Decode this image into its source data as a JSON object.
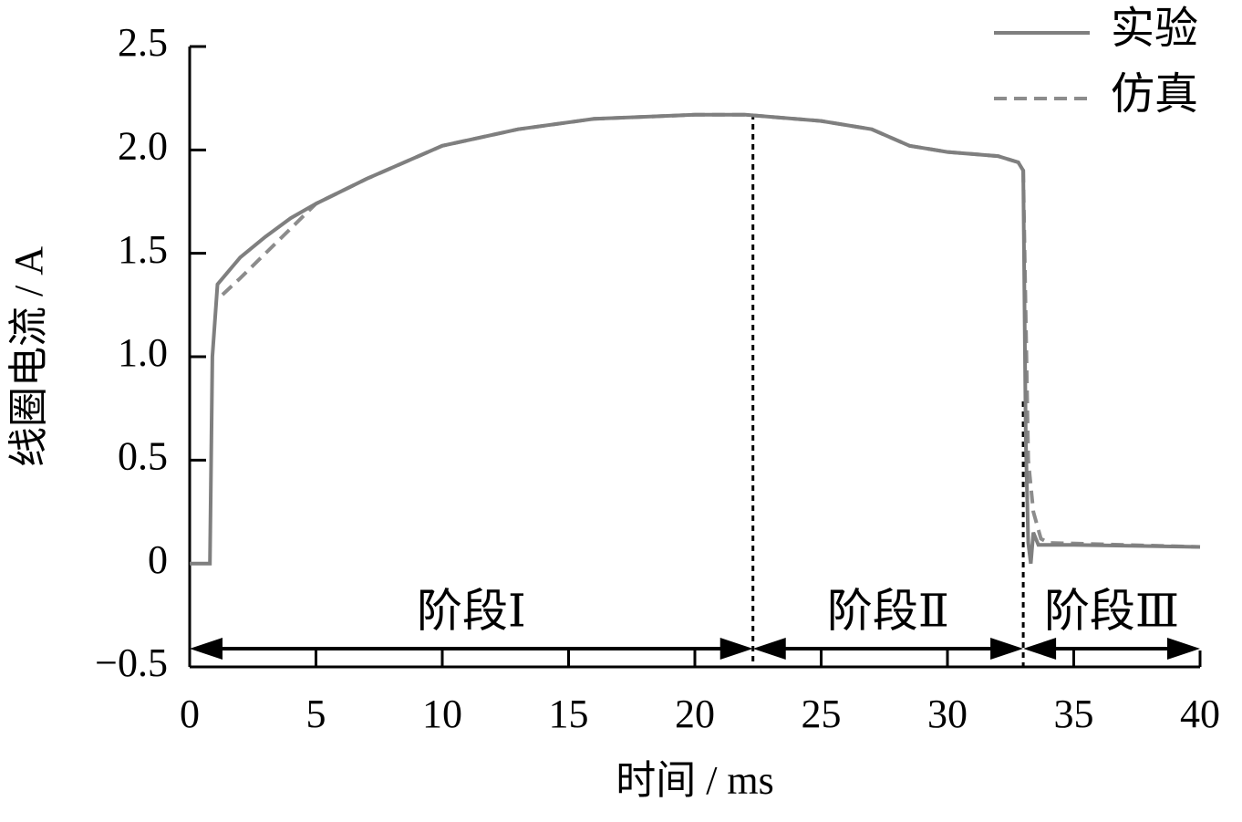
{
  "chart_data": {
    "type": "line",
    "xlabel": "时间 / ms",
    "ylabel": "线圈电流 / A",
    "xlim": [
      0,
      40
    ],
    "ylim": [
      -0.5,
      2.5
    ],
    "xticks": [
      0,
      5,
      10,
      15,
      20,
      25,
      30,
      35,
      40
    ],
    "yticks": [
      {
        "value": -0.5,
        "label": "−0.5"
      },
      0,
      0.5,
      {
        "value": 1.0,
        "label": "1.0"
      },
      1.5,
      {
        "value": 2.0,
        "label": "2.0"
      },
      2.5
    ],
    "legend": "top-right",
    "series": [
      {
        "name": "实验",
        "color": "#7f7f7f",
        "style": "solid",
        "x": [
          0,
          0.8,
          0.9,
          1.1,
          2,
          3,
          4,
          5,
          7,
          10,
          13,
          16,
          20,
          22,
          25,
          27,
          28.5,
          30,
          32,
          32.8,
          33,
          33.1,
          33.2,
          33.3,
          33.4,
          33.6,
          35,
          40
        ],
        "values": [
          0,
          0,
          1.0,
          1.35,
          1.48,
          1.58,
          1.67,
          1.74,
          1.86,
          2.02,
          2.1,
          2.15,
          2.17,
          2.17,
          2.14,
          2.1,
          2.02,
          1.99,
          1.97,
          1.94,
          1.9,
          0.6,
          0.1,
          0.0,
          0.15,
          0.09,
          0.09,
          0.08
        ]
      },
      {
        "name": "仿真",
        "color": "#8c8c8c",
        "style": "dashed",
        "x": [
          1.3,
          2,
          3,
          4,
          5,
          7,
          10,
          13,
          16,
          20,
          22,
          25,
          27,
          28.5,
          30,
          32,
          32.8,
          33,
          33.2,
          33.4,
          33.7,
          34,
          40
        ],
        "values": [
          1.3,
          1.38,
          1.5,
          1.62,
          1.74,
          1.86,
          2.02,
          2.1,
          2.15,
          2.17,
          2.17,
          2.14,
          2.1,
          2.02,
          1.99,
          1.97,
          1.94,
          1.9,
          0.5,
          0.25,
          0.12,
          0.1,
          0.08
        ]
      }
    ],
    "stages": [
      {
        "label": "阶段Ⅰ",
        "start": 0,
        "end": 22.3
      },
      {
        "label": "阶段Ⅱ",
        "start": 22.3,
        "end": 33
      },
      {
        "label": "阶段Ⅲ",
        "start": 33,
        "end": 40
      }
    ]
  }
}
